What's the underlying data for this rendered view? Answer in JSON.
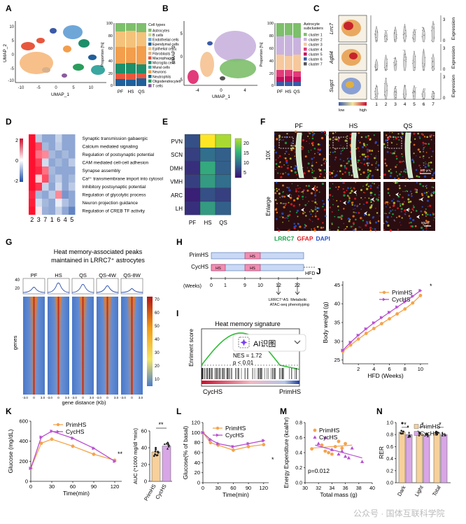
{
  "panel_letters": [
    "A",
    "B",
    "C",
    "D",
    "E",
    "F",
    "G",
    "H",
    "I",
    "J",
    "K",
    "L",
    "M",
    "N"
  ],
  "colors": {
    "purple": "#b84fd0",
    "orange": "#f5a34b",
    "bar_purple": "#d8a6e6",
    "bar_orange": "#f7d09a",
    "heat_red": "#d7322d",
    "heat_blue": "#2c62b5"
  },
  "panelA": {
    "xlabel": "UMAP_1",
    "ylabel": "UMAP_2",
    "x_ticks": [
      "-10",
      "-5",
      "0",
      "5",
      "10"
    ],
    "y_ticks": [
      "10",
      "5",
      "0",
      "-5",
      "-10"
    ],
    "stack_ylabel": "Proportion [%]",
    "stack_ticks": [
      "100",
      "80",
      "60",
      "40",
      "20",
      "0"
    ],
    "groups": [
      "PF",
      "HS",
      "QS"
    ],
    "legend_title": "Cell types",
    "legend": [
      {
        "label": "Astrocytes",
        "color": "#7dbf6b"
      },
      {
        "label": "B cells",
        "color": "#c7d68f"
      },
      {
        "label": "Endothelial cells",
        "color": "#6fa6d8"
      },
      {
        "label": "Ependymal cells",
        "color": "#1f5f9a"
      },
      {
        "label": "Epithelial cells",
        "color": "#f4c27a"
      },
      {
        "label": "Fibroblasts",
        "color": "#d9b08c"
      },
      {
        "label": "Macrophages",
        "color": "#e8573d"
      },
      {
        "label": "Microglia cells",
        "color": "#1d8f6a"
      },
      {
        "label": "Mural cells",
        "color": "#3aa7a0"
      },
      {
        "label": "Neurons",
        "color": "#f29e4c"
      },
      {
        "label": "Neutrophils",
        "color": "#0f6e8c"
      },
      {
        "label": "Oligodendrocytes",
        "color": "#2a9d5c"
      },
      {
        "label": "T cells",
        "color": "#8a5a9e"
      }
    ]
  },
  "panelB": {
    "xlabel": "UMAP_1",
    "ylabel": "UMAP_2",
    "x_ticks": [
      "-4",
      "0",
      "4"
    ],
    "y_ticks": [
      "5",
      "0",
      "-5"
    ],
    "stack_ylabel": "Proportion [%]",
    "stack_ticks": [
      "100",
      "80",
      "60",
      "40",
      "20",
      "0"
    ],
    "groups": [
      "PF",
      "HS",
      "QS"
    ],
    "legend_title": "Astrocyte subclusters",
    "legend": [
      {
        "label": "cluster 1",
        "color": "#7dbf6b"
      },
      {
        "label": "cluster 2",
        "color": "#c9b3de"
      },
      {
        "label": "cluster 3",
        "color": "#f6c89c"
      },
      {
        "label": "cluster 4",
        "color": "#e23b7a"
      },
      {
        "label": "cluster 5",
        "color": "#c40f5e"
      },
      {
        "label": "cluster 6",
        "color": "#3b5aa6"
      },
      {
        "label": "cluster 7",
        "color": "#555555"
      }
    ]
  },
  "panelC": {
    "genes": [
      "Lrrc7",
      "Agbl4",
      "Sugct"
    ],
    "colorbar_low": "low",
    "colorbar_high": "high",
    "ylabel": "Expression",
    "y_ticks": [
      "3",
      "0"
    ],
    "clusters": [
      "1",
      "2",
      "3",
      "4",
      "5",
      "6",
      "7"
    ]
  },
  "panelD": {
    "columns": [
      "2",
      "3",
      "7",
      "1",
      "6",
      "4",
      "5"
    ],
    "scale": [
      "2",
      "0",
      "-2"
    ],
    "terms": [
      "Synaptic transmission gabaergic",
      "Calcium mediated signaling",
      "Regulation of postsynaptic potential",
      "CAM mediated cell-cell adhesion",
      "Synapse assembly",
      "Ca²⁺ transmembrane import into cytosol",
      "Inhibitory postsynaptic potential",
      "Regulation of glycolytic process",
      "Neuron projection guidance",
      "Regulation of CREB TF activity"
    ]
  },
  "panelE": {
    "rows": [
      "PVN",
      "SCN",
      "DMH",
      "VMH",
      "ARC",
      "LH"
    ],
    "cols": [
      "PF",
      "HS",
      "QS"
    ],
    "values": [
      [
        6,
        24,
        18
      ],
      [
        5,
        8,
        7
      ],
      [
        4,
        12,
        7
      ],
      [
        5,
        11,
        8
      ],
      [
        3,
        6,
        5
      ],
      [
        4,
        11,
        7
      ]
    ],
    "scale": [
      "20",
      "15",
      "10",
      "5"
    ]
  },
  "panelF": {
    "groups": [
      "PF",
      "HS",
      "QS"
    ],
    "row_labels": [
      "10X",
      "Enlarge"
    ],
    "scalebar_top": "100 μm",
    "scalebar_bottom": "50μm",
    "legend": [
      {
        "label": "LRRC7",
        "color": "#19a64a"
      },
      {
        "label": "GFAP",
        "color": "#e31c23"
      },
      {
        "label": "DAPI",
        "color": "#2450c8"
      }
    ]
  },
  "panelG": {
    "title_line1": "Heat memory-associated peaks",
    "title_line2": "maintained in LRRC7⁺ astrocytes",
    "groups": [
      "PF",
      "HS",
      "QS",
      "QS-4W",
      "QS-8W"
    ],
    "profile_ticks": [
      "40",
      "20"
    ],
    "ylabel": "genes",
    "xlabel": "gene distance (Kb)",
    "x_ticks": [
      "-3.0",
      "0",
      "3.0"
    ],
    "scale": [
      "70",
      "60",
      "50",
      "40",
      "30",
      "20",
      "10"
    ]
  },
  "panelH": {
    "rows": [
      "PrimHS",
      "CycHS"
    ],
    "hs_label": "HS",
    "hfd_label": "HFD",
    "weeks_label": "(Weeks)",
    "weeks": [
      "0",
      "1",
      "9",
      "10",
      "12",
      "22"
    ],
    "annotation_1": "LRRC7⁺AS ATAC-seq",
    "annotation_2": "Metabolic phenotyping"
  },
  "panelI": {
    "title": "Heat memory signature",
    "ylabel": "Enriment score",
    "nes": "NES = 1.72",
    "pval": "p < 0.01",
    "left_label": "CycHS",
    "right_label": "PrimHS",
    "overlay_text": "AI识图"
  },
  "panelJ": {
    "ylabel": "Body weight (g)",
    "xlabel": "HFD (Weeks)",
    "legend": [
      "PrimHS",
      "CycHS"
    ],
    "sig": "*",
    "chart_data": {
      "type": "line",
      "title": "",
      "xlabel": "HFD (Weeks)",
      "ylabel": "Body weight (g)",
      "x": [
        0,
        1,
        2,
        3,
        4,
        5,
        6,
        7,
        8,
        9,
        10
      ],
      "x_ticks": [
        "2",
        "4",
        "6",
        "8",
        "10"
      ],
      "y_ticks": [
        "25",
        "30",
        "35",
        "40",
        "45"
      ],
      "xlim": [
        0,
        11
      ],
      "ylim": [
        24,
        46
      ],
      "series": [
        {
          "name": "PrimHS",
          "values": [
            27.3,
            29.0,
            30.6,
            32.1,
            33.4,
            34.7,
            36.0,
            37.3,
            38.6,
            40.2,
            42.2
          ]
        },
        {
          "name": "CycHS",
          "values": [
            27.6,
            29.7,
            31.6,
            33.3,
            34.9,
            36.3,
            37.7,
            39.1,
            40.5,
            42.0,
            43.5
          ]
        }
      ]
    }
  },
  "panelK": {
    "ylabel": "Glucose (mg/dL)",
    "xlabel": "Time(min)",
    "legend": [
      "PrimHS",
      "CycHS"
    ],
    "sig": "**",
    "bar_sig": "**",
    "bar_ylabel": "AUC (*1000 mg/dl *min)",
    "chart_data": {
      "type": "line",
      "x": [
        0,
        15,
        30,
        60,
        90,
        120
      ],
      "x_ticks": [
        "0",
        "30",
        "60",
        "90",
        "120"
      ],
      "y_ticks": [
        "0",
        "200",
        "400",
        "600"
      ],
      "xlim": [
        0,
        130
      ],
      "ylim": [
        0,
        600
      ],
      "series": [
        {
          "name": "PrimHS",
          "values": [
            130,
            380,
            420,
            350,
            270,
            210
          ]
        },
        {
          "name": "CycHS",
          "values": [
            130,
            440,
            500,
            430,
            330,
            200
          ]
        }
      ],
      "auc": {
        "categories": [
          "PrimHS",
          "CycHS"
        ],
        "values": [
          35,
          42
        ],
        "ylim": [
          0,
          60
        ],
        "y_ticks": [
          "0",
          "20",
          "40",
          "60"
        ]
      }
    }
  },
  "panelL": {
    "ylabel": "Glucose(% of basal)",
    "xlabel": "Time(min)",
    "legend": [
      "PrimHS",
      "CycHS"
    ],
    "sig": "*",
    "chart_data": {
      "type": "line",
      "x": [
        0,
        15,
        30,
        60,
        90,
        120
      ],
      "x_ticks": [
        "0",
        "30",
        "60",
        "90",
        "120"
      ],
      "y_ticks": [
        "0",
        "20",
        "40",
        "60",
        "80",
        "100",
        "120"
      ],
      "xlim": [
        0,
        130
      ],
      "ylim": [
        0,
        120
      ],
      "series": [
        {
          "name": "PrimHS",
          "values": [
            100,
            80,
            75,
            65,
            72,
            76
          ]
        },
        {
          "name": "CycHS",
          "values": [
            100,
            86,
            78,
            72,
            78,
            84
          ]
        }
      ]
    }
  },
  "panelM": {
    "ylabel": "Energy Expenditure (kcal/hr)",
    "xlabel": "Total mass (g)",
    "legend": [
      "PrimHS",
      "CycHS"
    ],
    "pval": "p=0.012",
    "chart_data": {
      "type": "scatter",
      "x_ticks": [
        "30",
        "32",
        "34",
        "36",
        "38",
        "40"
      ],
      "y_ticks": [
        "0.0",
        "0.2",
        "0.4",
        "0.6",
        "0.8"
      ],
      "xlim": [
        30,
        40
      ],
      "ylim": [
        0,
        0.8
      ],
      "series": [
        {
          "name": "PrimHS",
          "x": [
            31,
            32.5,
            33,
            34,
            34.5,
            35,
            35.5,
            36,
            33.5
          ],
          "y": [
            0.45,
            0.5,
            0.42,
            0.38,
            0.48,
            0.55,
            0.46,
            0.52,
            0.4
          ]
        },
        {
          "name": "CycHS",
          "x": [
            32,
            33,
            34,
            35,
            35.5,
            36,
            36.5,
            37,
            38.5
          ],
          "y": [
            0.52,
            0.6,
            0.44,
            0.38,
            0.42,
            0.35,
            0.33,
            0.46,
            0.28
          ]
        }
      ]
    }
  },
  "panelN": {
    "ylabel": "RER",
    "legend": [
      "PrimHS",
      "CycHS"
    ],
    "sig": [
      "*",
      "*",
      "*"
    ],
    "chart_data": {
      "type": "bar",
      "categories": [
        "Dark",
        "Light",
        "Total"
      ],
      "y_ticks": [
        "0.0",
        "0.2",
        "0.4",
        "0.6",
        "0.8",
        "1.0"
      ],
      "ylim": [
        0,
        1.0
      ],
      "series": [
        {
          "name": "PrimHS",
          "values": [
            0.84,
            0.82,
            0.83
          ]
        },
        {
          "name": "CycHS",
          "values": [
            0.8,
            0.79,
            0.8
          ]
        }
      ]
    }
  },
  "watermark": "公众号 · 国体互联科学院"
}
